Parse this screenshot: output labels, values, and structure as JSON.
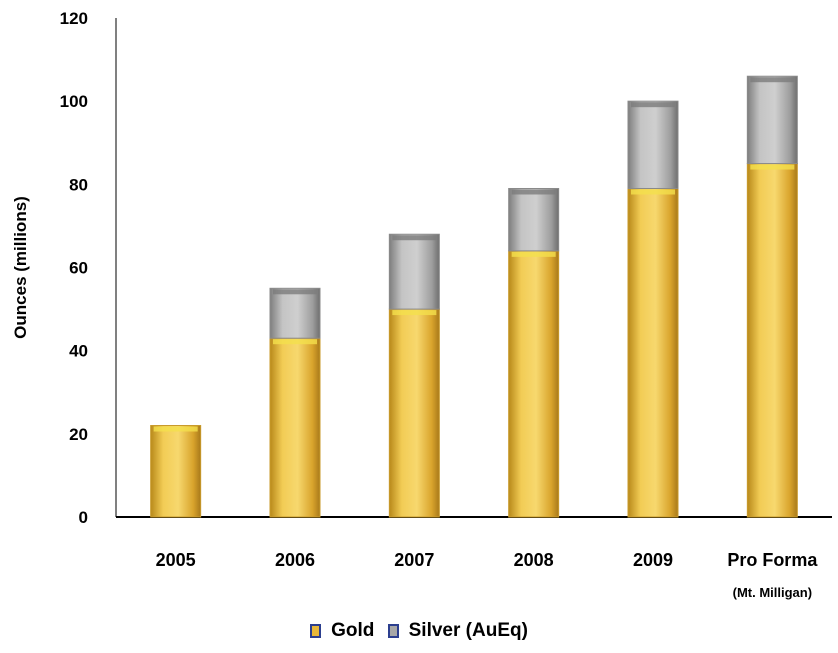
{
  "chart_data": {
    "type": "bar",
    "stacked": true,
    "categories": [
      "2005",
      "2006",
      "2007",
      "2008",
      "2009",
      "Pro Forma"
    ],
    "category_sublabels": [
      "",
      "",
      "",
      "",
      "",
      "(Mt. Milligan)"
    ],
    "series": [
      {
        "name": "Gold",
        "values": [
          22,
          43,
          50,
          64,
          79,
          85
        ],
        "color": "#e8b83a"
      },
      {
        "name": "Silver (AuEq)",
        "values": [
          0,
          12,
          18,
          15,
          21,
          21
        ],
        "color": "#a8a8a8"
      }
    ],
    "ylabel": "Ounces (millions)",
    "xlabel": "",
    "ylim": [
      0,
      120
    ],
    "yticks": [
      0,
      20,
      40,
      60,
      80,
      100,
      120
    ],
    "grid": false,
    "legend_position": "bottom"
  },
  "legend": {
    "items": [
      {
        "label": "Gold",
        "color": "#e8b83a"
      },
      {
        "label": "Silver (AuEq)",
        "color": "#a8a8a8"
      }
    ]
  }
}
